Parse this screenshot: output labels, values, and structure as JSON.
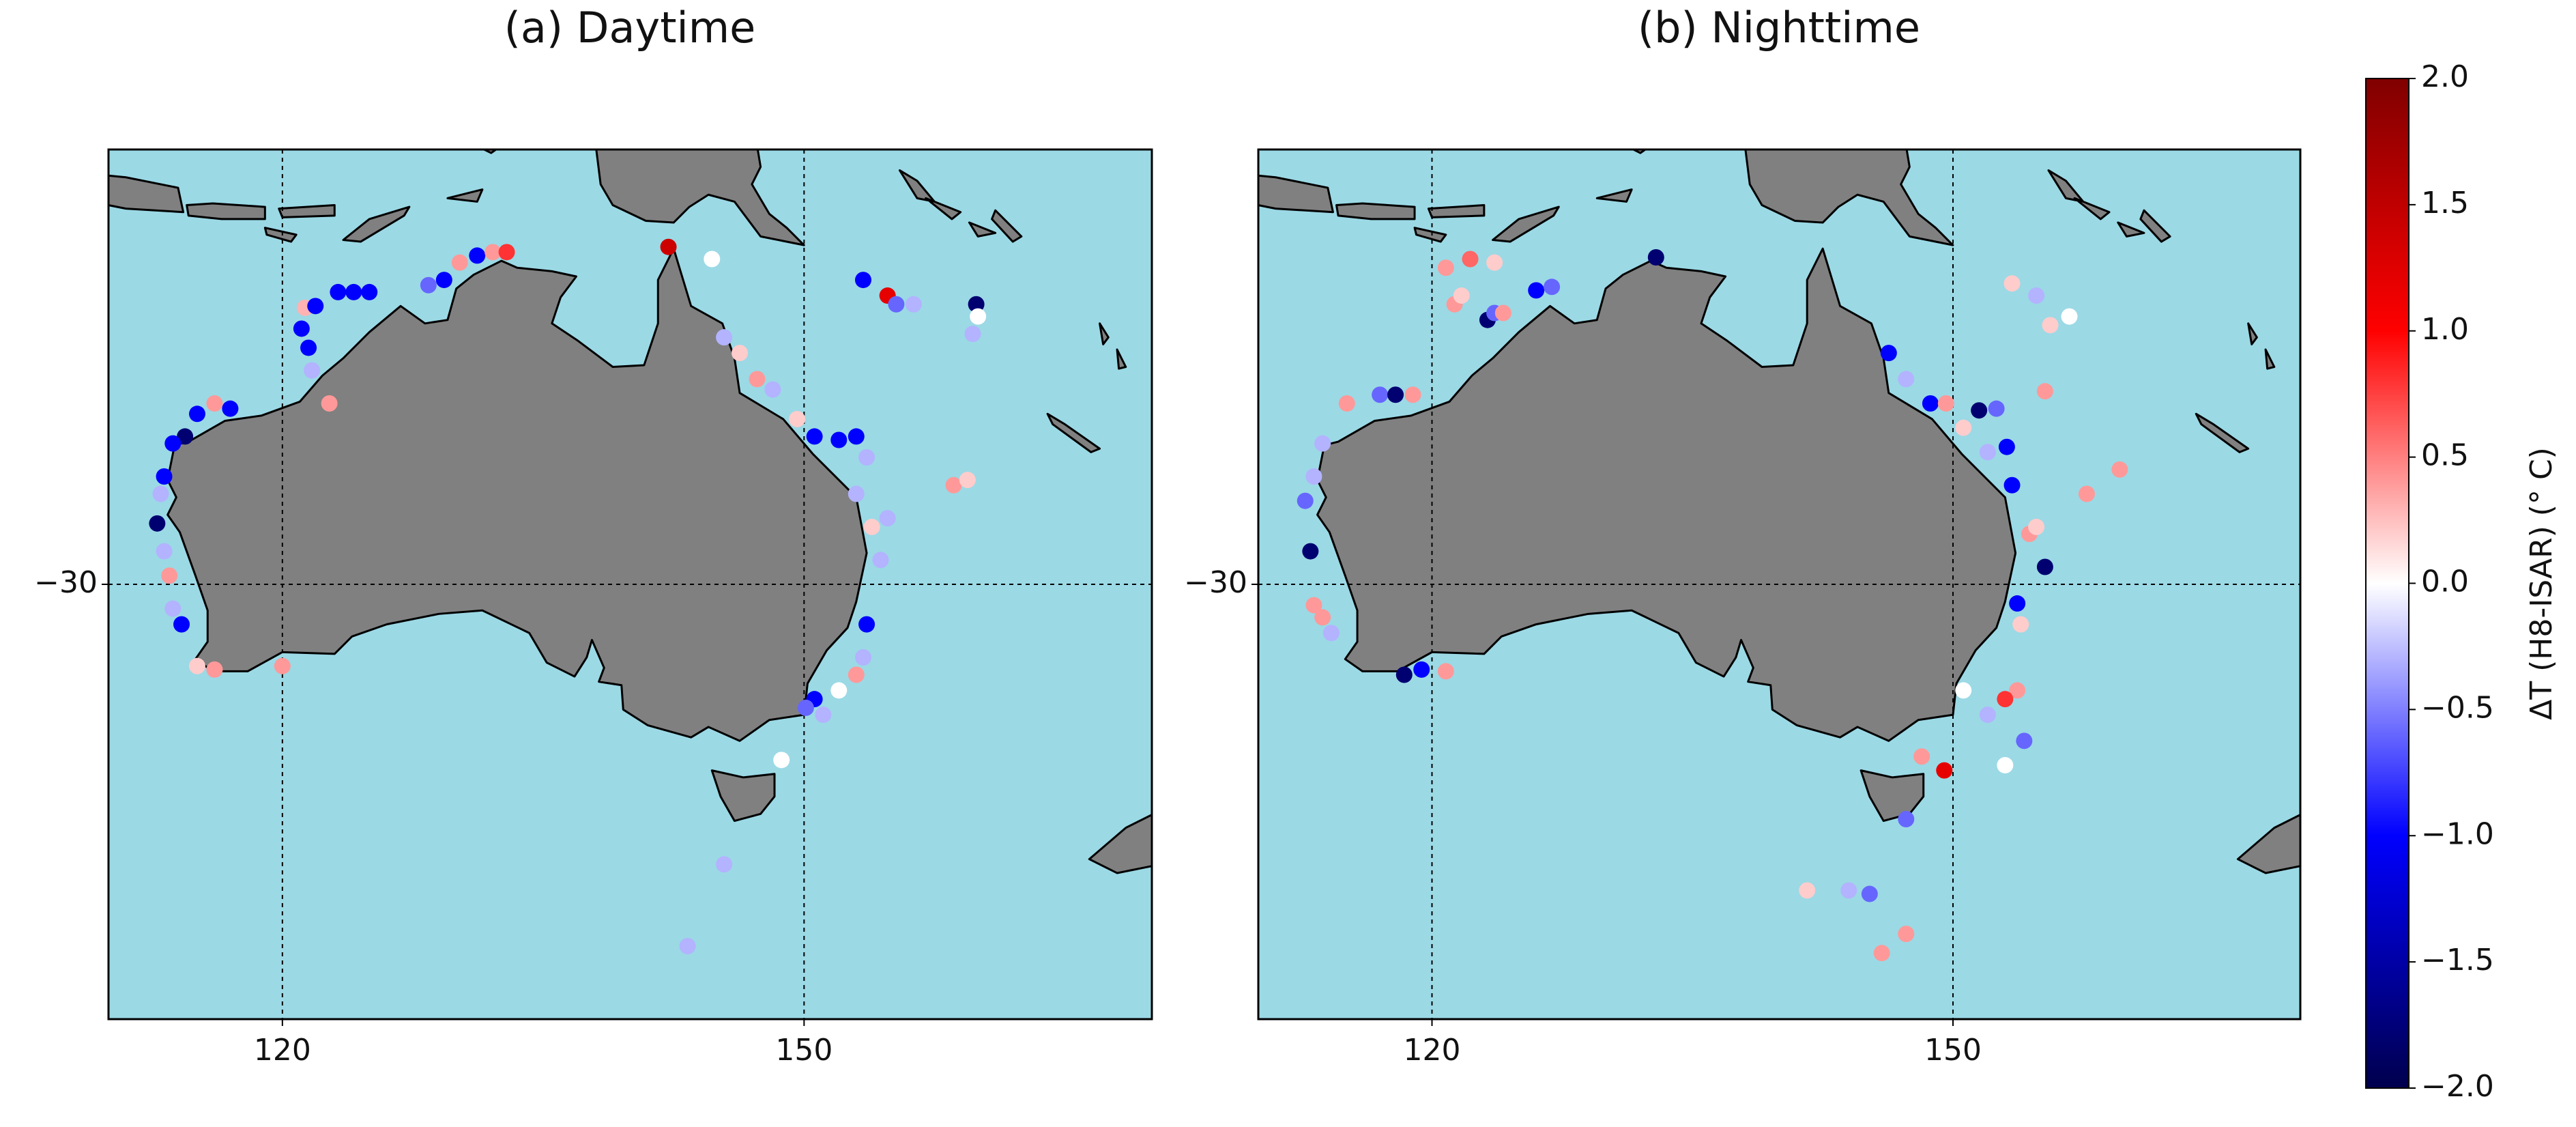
{
  "chart_data": [
    {
      "type": "scatter",
      "title": "(a) Daytime",
      "x": [
        121.3,
        121.9,
        123.2,
        124.1,
        125.0,
        128.4,
        129.3,
        130.2,
        131.2,
        132.1,
        132.9,
        121.1,
        121.5,
        121.7,
        122.7,
        116.1,
        117.0,
        115.1,
        114.4,
        113.7,
        113.2,
        113.0,
        112.8,
        113.2,
        113.5,
        113.7,
        114.2,
        115.1,
        116.1,
        120.0,
        142.2,
        144.7,
        145.4,
        146.3,
        147.3,
        148.2,
        149.6,
        150.6,
        152.0,
        153.0,
        153.6,
        153.0,
        153.9,
        154.8,
        154.4,
        153.6,
        153.4,
        153.0,
        152.0,
        150.6,
        151.1,
        150.1,
        148.7,
        145.4,
        143.3,
        153.4,
        154.8,
        155.3,
        156.3,
        159.9,
        160.0,
        159.7,
        158.6,
        159.4
      ],
      "y": [
        -14.1,
        -14.0,
        -13.2,
        -13.2,
        -13.2,
        -12.8,
        -12.5,
        -11.5,
        -11.1,
        -10.9,
        -10.9,
        -15.3,
        -16.4,
        -17.7,
        -19.6,
        -19.6,
        -19.9,
        -20.2,
        -21.5,
        -21.9,
        -23.8,
        -24.8,
        -26.5,
        -28.1,
        -29.5,
        -31.4,
        -32.3,
        -34.7,
        -34.9,
        -34.7,
        -10.6,
        -11.3,
        -15.8,
        -16.7,
        -18.2,
        -18.8,
        -20.5,
        -21.5,
        -21.7,
        -21.5,
        -22.7,
        -24.8,
        -26.7,
        -26.2,
        -28.6,
        -32.3,
        -34.2,
        -35.2,
        -36.1,
        -36.6,
        -37.5,
        -37.1,
        -40.1,
        -46.1,
        -50.8,
        -12.5,
        -13.4,
        -13.9,
        -13.9,
        -13.9,
        -14.6,
        -15.6,
        -24.3,
        -24.0
      ],
      "values": [
        0.3,
        -1.0,
        -1.0,
        -1.0,
        -1.0,
        -0.6,
        -1.0,
        0.4,
        -1.0,
        0.4,
        0.8,
        -1.0,
        -1.0,
        -0.3,
        0.4,
        0.4,
        -1.0,
        -1.0,
        -1.8,
        -1.0,
        -1.0,
        -0.3,
        -1.8,
        -0.3,
        0.4,
        -0.3,
        -1.0,
        0.2,
        0.4,
        0.4,
        1.4,
        0.0,
        -0.3,
        0.2,
        0.4,
        -0.3,
        0.2,
        -1.0,
        -1.0,
        -1.0,
        -0.3,
        -0.3,
        0.2,
        -0.3,
        -0.3,
        -1.0,
        -0.3,
        0.4,
        0.0,
        -1.0,
        -0.3,
        -0.6,
        0.0,
        -0.3,
        -0.3,
        -1.0,
        1.2,
        -0.6,
        -0.3,
        -1.8,
        0.0,
        -0.3,
        0.4,
        0.2
      ],
      "xlim": [
        110,
        170
      ],
      "ylim": [
        -55,
        -5
      ],
      "xticks": [
        120,
        150
      ],
      "yticks": [
        {
          "value": -30,
          "label": "−30"
        }
      ],
      "grid": true
    },
    {
      "type": "scatter",
      "title": "(b) Nighttime",
      "x": [
        120.8,
        122.2,
        123.6,
        132.9,
        121.3,
        121.7,
        123.2,
        123.6,
        124.1,
        126.0,
        126.9,
        115.1,
        117.0,
        117.9,
        118.9,
        113.7,
        113.2,
        112.7,
        113.0,
        113.2,
        113.7,
        114.2,
        118.4,
        119.4,
        120.8,
        146.3,
        147.3,
        148.7,
        149.6,
        151.5,
        152.5,
        150.6,
        152.0,
        153.1,
        153.4,
        154.4,
        154.8,
        155.3,
        153.7,
        153.9,
        153.7,
        153.0,
        150.6,
        152.0,
        154.1,
        153.0,
        149.5,
        148.2,
        147.3,
        153.4,
        154.8,
        156.7,
        155.6,
        155.3,
        159.6,
        157.7,
        141.6,
        144.0,
        145.2,
        145.9,
        147.3
      ],
      "y": [
        -11.8,
        -11.3,
        -11.5,
        -11.2,
        -13.9,
        -13.4,
        -14.8,
        -14.4,
        -14.4,
        -13.1,
        -12.9,
        -19.6,
        -19.1,
        -19.1,
        -19.1,
        -21.9,
        -23.8,
        -25.2,
        -28.1,
        -31.2,
        -31.9,
        -32.8,
        -35.2,
        -34.9,
        -35.0,
        -16.7,
        -18.2,
        -19.6,
        -19.6,
        -20.0,
        -19.9,
        -21.0,
        -22.4,
        -22.1,
        -24.3,
        -27.1,
        -26.7,
        -29.0,
        -31.1,
        -32.3,
        -36.1,
        -36.6,
        -36.1,
        -37.5,
        -39.0,
        -40.4,
        -40.7,
        -39.9,
        -43.5,
        -12.7,
        -13.4,
        -14.6,
        -15.1,
        -18.9,
        -23.4,
        -24.8,
        -47.6,
        -47.6,
        -47.8,
        -51.2,
        -50.1
      ],
      "values": [
        0.4,
        0.6,
        0.2,
        -1.8,
        0.4,
        0.2,
        -1.8,
        -0.6,
        0.4,
        -1.0,
        -0.6,
        0.4,
        -0.6,
        -1.8,
        0.4,
        -0.3,
        -0.3,
        -0.6,
        -1.8,
        0.4,
        0.4,
        -0.3,
        -1.8,
        -1.0,
        0.4,
        -1.0,
        -0.3,
        -1.0,
        0.4,
        -1.8,
        -0.6,
        0.2,
        -0.3,
        -1.0,
        -1.0,
        0.4,
        0.2,
        -1.8,
        -1.0,
        0.2,
        0.4,
        0.8,
        0.0,
        -0.3,
        -0.6,
        0.0,
        1.2,
        0.4,
        -0.6,
        0.2,
        -0.3,
        0.0,
        0.2,
        0.4,
        0.4,
        0.4,
        0.2,
        -0.3,
        -0.6,
        0.4,
        0.4
      ],
      "xlim": [
        110,
        170
      ],
      "ylim": [
        -55,
        -5
      ],
      "xticks": [
        120,
        150
      ],
      "yticks": [
        {
          "value": -30,
          "label": "−30"
        }
      ],
      "grid": true
    }
  ],
  "colorbar": {
    "label": "ΔT (H8-ISAR) (° C)",
    "colormap": "seismic",
    "lim": [
      -2,
      2
    ],
    "ticks": [
      {
        "value": -2,
        "label": "−2.0"
      },
      {
        "value": -1.5,
        "label": "−1.5"
      },
      {
        "value": -1,
        "label": "−1.0"
      },
      {
        "value": -0.5,
        "label": "−0.5"
      },
      {
        "value": 0,
        "label": "0.0"
      },
      {
        "value": 0.5,
        "label": "0.5"
      },
      {
        "value": 1,
        "label": "1.0"
      },
      {
        "value": 1.5,
        "label": "1.5"
      },
      {
        "value": 2,
        "label": "2.0"
      }
    ]
  }
}
